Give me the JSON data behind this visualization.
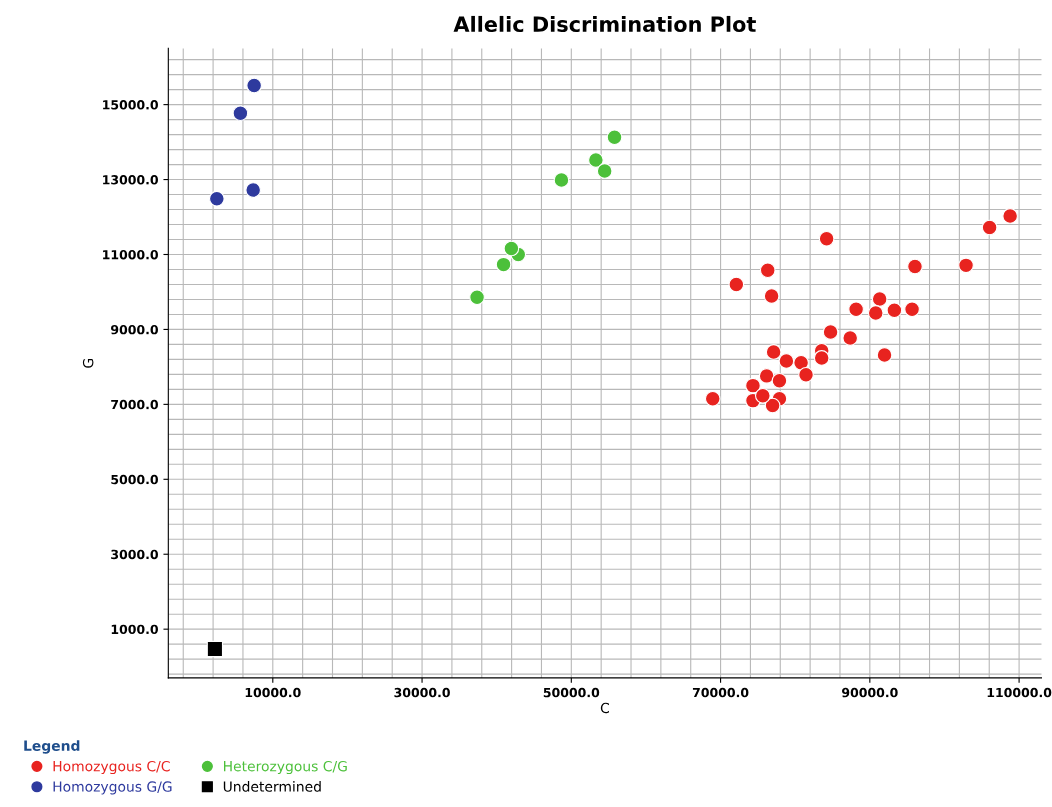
{
  "chart_data": {
    "type": "scatter",
    "title": "Allelic Discrimination Plot",
    "xlabel": "C",
    "ylabel": "G",
    "legend_title": "Legend",
    "legend": "bottom",
    "grid": true,
    "xlim": [
      -4000,
      113000
    ],
    "xticks": [
      {
        "value": 10000,
        "label": "10000.0"
      },
      {
        "value": 30000,
        "label": "30000.0"
      },
      {
        "value": 50000,
        "label": "50000.0"
      },
      {
        "value": 70000,
        "label": "70000.0"
      },
      {
        "value": 90000,
        "label": "90000.0"
      },
      {
        "value": 110000,
        "label": "110000.0"
      }
    ],
    "ylim": [
      -300,
      16500
    ],
    "yticks": [
      {
        "value": 1000,
        "label": "1000.0"
      },
      {
        "value": 3000,
        "label": "3000.0"
      },
      {
        "value": 5000,
        "label": "5000.0"
      },
      {
        "value": 7000,
        "label": "7000.0"
      },
      {
        "value": 9000,
        "label": "9000.0"
      },
      {
        "value": 11000,
        "label": "11000.0"
      },
      {
        "value": 13000,
        "label": "13000.0"
      },
      {
        "value": 15000,
        "label": "15000.0"
      }
    ],
    "series": [
      {
        "name": "Homozygous C/C",
        "color": "#e8231f",
        "marker": "circle",
        "x": [
          108800,
          106050,
          84210,
          96050,
          102890,
          76320,
          72110,
          76840,
          91320,
          88160,
          90790,
          93290,
          95660,
          84740,
          87370,
          91970,
          83550,
          83550,
          77110,
          78820,
          80790,
          81450,
          76180,
          74340,
          77890,
          68950,
          74340,
          77890,
          76970,
          75660
        ],
        "values": [
          12030,
          11720,
          11420,
          10680,
          10710,
          10580,
          10200,
          9890,
          9810,
          9540,
          9440,
          9510,
          9540,
          8930,
          8770,
          8320,
          8430,
          8240,
          8400,
          8160,
          8110,
          7790,
          7760,
          7500,
          7630,
          7150,
          7100,
          7150,
          6970,
          7230
        ]
      },
      {
        "name": "Homozygous G/G",
        "color": "#2e3a9e",
        "marker": "circle",
        "x": [
          7500,
          5660,
          2500,
          7370
        ],
        "values": [
          15510,
          14770,
          12490,
          12720
        ]
      },
      {
        "name": "Heterozygous C/G",
        "color": "#4cc03a",
        "marker": "circle",
        "x": [
          37370,
          40920,
          42890,
          41970,
          48680,
          53290,
          54470,
          55790
        ],
        "values": [
          9860,
          10730,
          11000,
          11160,
          12990,
          13520,
          13230,
          14130
        ]
      },
      {
        "name": "Undetermined",
        "color": "#000000",
        "marker": "square",
        "x": [
          2240
        ],
        "values": [
          470
        ]
      }
    ]
  }
}
